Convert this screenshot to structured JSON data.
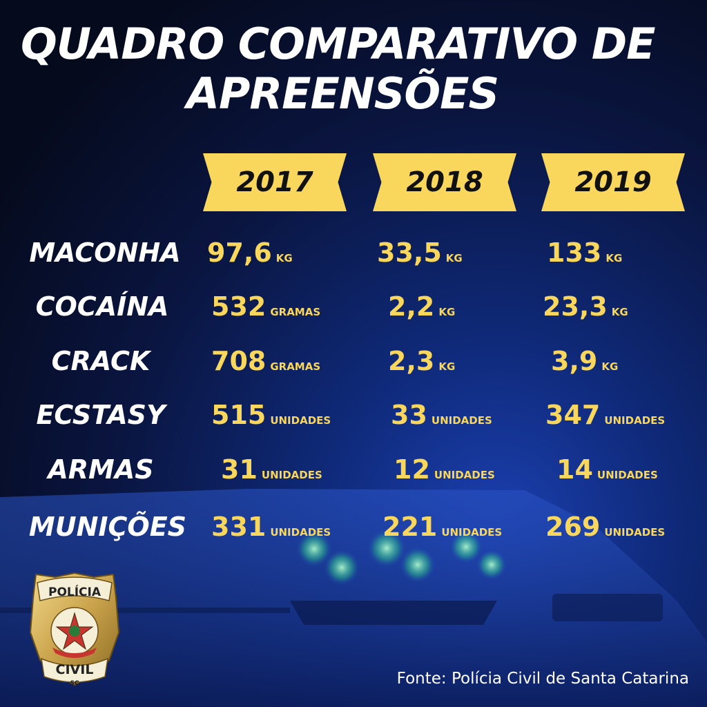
{
  "title": {
    "line1": "QUADRO COMPARATIVO DE",
    "line2": "APREENSÕES"
  },
  "years": [
    "2017",
    "2018",
    "2019"
  ],
  "rows": [
    {
      "label": "MACONHA",
      "values": [
        {
          "num": "97,6",
          "unit": "KG"
        },
        {
          "num": "33,5",
          "unit": "KG"
        },
        {
          "num": "133",
          "unit": "KG"
        }
      ]
    },
    {
      "label": "COCAÍNA",
      "values": [
        {
          "num": "532",
          "unit": "GRAMAS"
        },
        {
          "num": "2,2",
          "unit": "KG"
        },
        {
          "num": "23,3",
          "unit": "KG"
        }
      ]
    },
    {
      "label": "CRACK",
      "values": [
        {
          "num": "708",
          "unit": "GRAMAS"
        },
        {
          "num": "2,3",
          "unit": "KG"
        },
        {
          "num": "3,9",
          "unit": "KG"
        }
      ]
    },
    {
      "label": "ECSTASY",
      "values": [
        {
          "num": "515",
          "unit": "UNIDADES"
        },
        {
          "num": "33",
          "unit": "UNIDADES"
        },
        {
          "num": "347",
          "unit": "UNIDADES"
        }
      ]
    },
    {
      "label": "ARMAS",
      "values": [
        {
          "num": "31",
          "unit": "UNIDADES"
        },
        {
          "num": "12",
          "unit": "UNIDADES"
        },
        {
          "num": "14",
          "unit": "UNIDADES"
        }
      ]
    },
    {
      "label": "MUNIÇÕES",
      "values": [
        {
          "num": "331",
          "unit": "UNIDADES"
        },
        {
          "num": "221",
          "unit": "UNIDADES"
        },
        {
          "num": "269",
          "unit": "UNIDADES"
        }
      ]
    }
  ],
  "badge": {
    "top": "POLÍCIA",
    "bottom": "CIVIL",
    "state": "SC"
  },
  "source": "Fonte: Polícia Civil de Santa Catarina",
  "colors": {
    "accent": "#f9d65c",
    "text": "#ffffff",
    "background": "#0a1540"
  }
}
